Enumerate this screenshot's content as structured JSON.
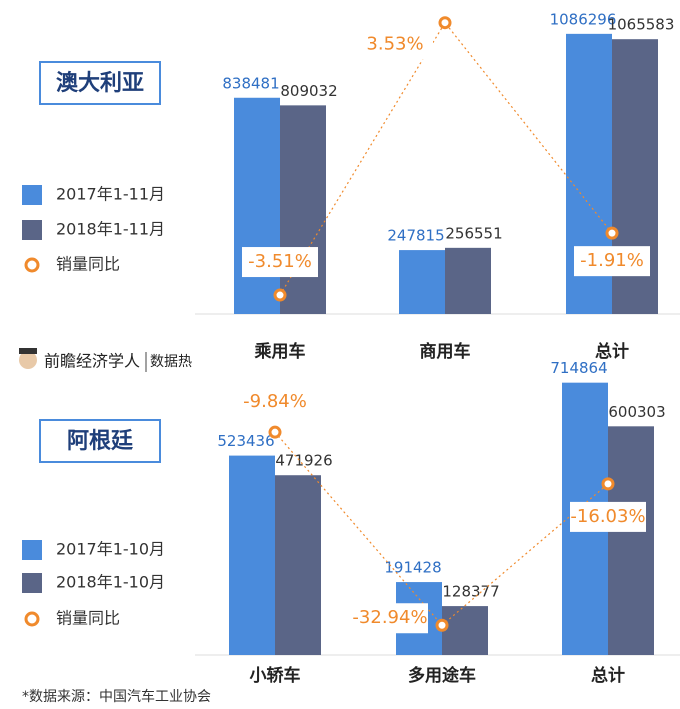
{
  "chart_data": [
    {
      "type": "bar",
      "title": "澳大利亚",
      "categories": [
        "乘用车",
        "商用车",
        "总计"
      ],
      "series": [
        {
          "name": "2017年1-11月",
          "color": "#4a8bdc",
          "values": [
            838481,
            247815,
            1086296
          ]
        },
        {
          "name": "2018年1-11月",
          "color": "#5a6587",
          "values": [
            809032,
            256551,
            1065583
          ]
        },
        {
          "name": "销量同比",
          "color": "#f08a2c",
          "axis": "y2",
          "type": "line",
          "values": [
            -3.51,
            3.53,
            -1.91
          ],
          "value_labels": [
            "-3.51%",
            "3.53%",
            "-1.91%"
          ]
        }
      ],
      "ylim": [
        0,
        1140000
      ],
      "y2lim": [
        -4,
        3.6
      ]
    },
    {
      "type": "bar",
      "title": "阿根廷",
      "categories": [
        "小轿车",
        "多用途车",
        "总计"
      ],
      "series": [
        {
          "name": "2017年1-10月",
          "color": "#4a8bdc",
          "values": [
            523436,
            191428,
            714864
          ]
        },
        {
          "name": "2018年1-10月",
          "color": "#5a6587",
          "values": [
            471926,
            128377,
            600303
          ]
        },
        {
          "name": "销量同比",
          "color": "#f08a2c",
          "axis": "y2",
          "type": "line",
          "values": [
            -9.84,
            -32.94,
            -16.03
          ],
          "value_labels": [
            "-9.84%",
            "-32.94%",
            "-16.03%"
          ]
        }
      ],
      "ylim": [
        0,
        735000
      ],
      "y2lim": [
        -36.5,
        -3
      ]
    }
  ],
  "brand": "前瞻经济学人",
  "brand_tag": "数据热",
  "source": "*数据来源：中国汽车工业协会"
}
